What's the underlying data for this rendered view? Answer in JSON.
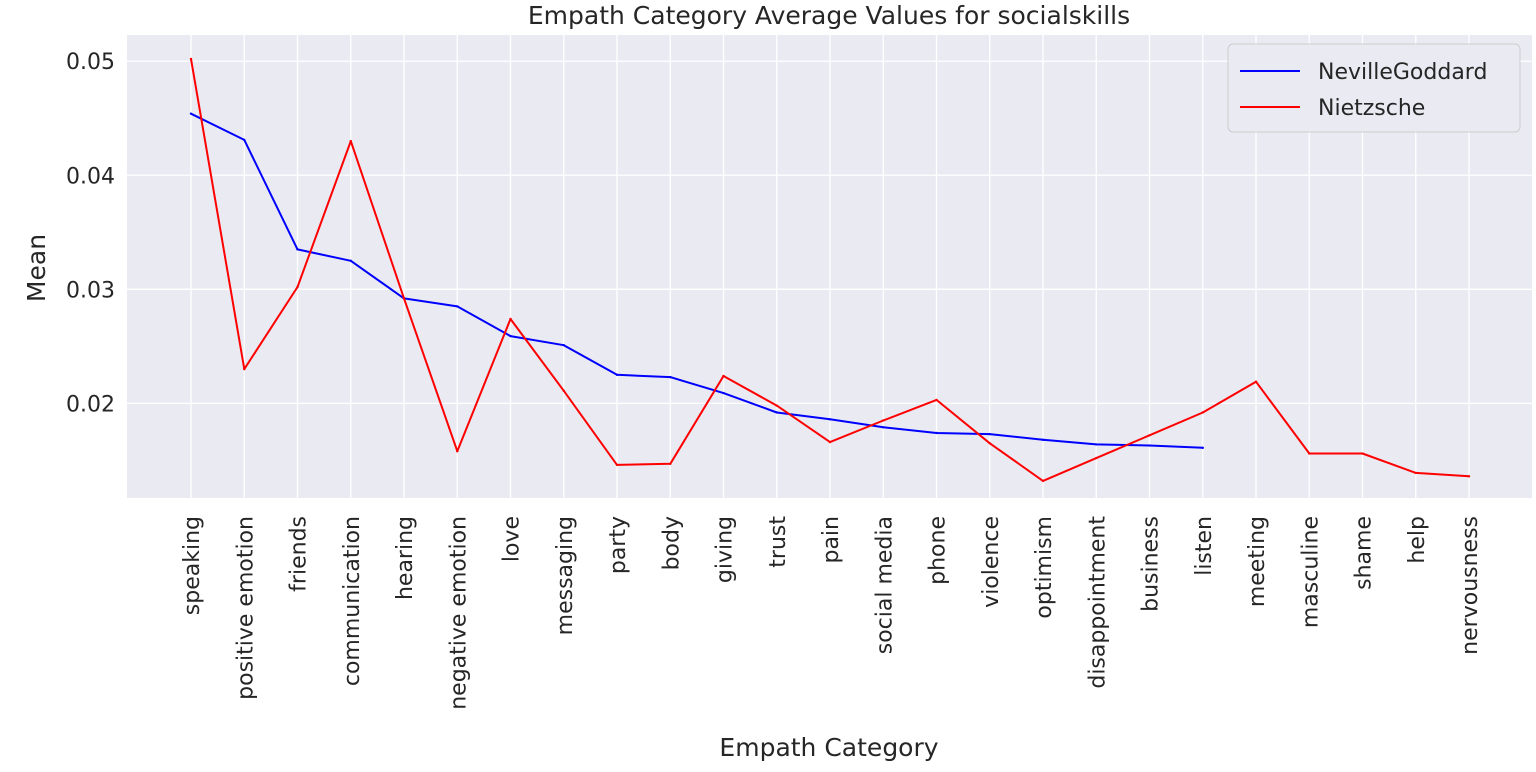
{
  "chart_data": {
    "type": "line",
    "title": "Empath Category Average Values for socialskills",
    "xlabel": "Empath Category",
    "ylabel": "Mean",
    "ylim": [
      0.0117,
      0.0523
    ],
    "yticks": [
      0.02,
      0.03,
      0.04,
      0.05
    ],
    "ytick_labels": [
      "0.02",
      "0.03",
      "0.04",
      "0.05"
    ],
    "grid": true,
    "legend_position": "top-right",
    "categories": [
      "speaking",
      "positive emotion",
      "friends",
      "communication",
      "hearing",
      "negative emotion",
      "love",
      "messaging",
      "party",
      "body",
      "giving",
      "trust",
      "pain",
      "social media",
      "phone",
      "violence",
      "optimism",
      "disappointment",
      "business",
      "listen",
      "meeting",
      "masculine",
      "shame",
      "help",
      "nervousness"
    ],
    "series": [
      {
        "name": "NevilleGoddard",
        "color": "#0000ff",
        "values": [
          0.0454,
          0.0431,
          0.0335,
          0.0325,
          0.0292,
          0.0285,
          0.0259,
          0.0251,
          0.0225,
          0.0223,
          0.0209,
          0.0192,
          0.0186,
          0.0179,
          0.0174,
          0.0173,
          0.0168,
          0.0164,
          0.0163,
          0.0161,
          null,
          null,
          null,
          null,
          null
        ]
      },
      {
        "name": "Nietzsche",
        "color": "#ff0000",
        "values": [
          0.0502,
          0.023,
          0.0302,
          0.043,
          0.0292,
          0.0158,
          0.0274,
          0.0211,
          0.0146,
          0.0147,
          0.0224,
          0.0198,
          0.0166,
          0.0185,
          0.0203,
          0.0165,
          0.0132,
          0.0152,
          0.0172,
          0.0192,
          0.0219,
          0.0156,
          0.0156,
          0.0139,
          0.0136
        ]
      }
    ]
  }
}
